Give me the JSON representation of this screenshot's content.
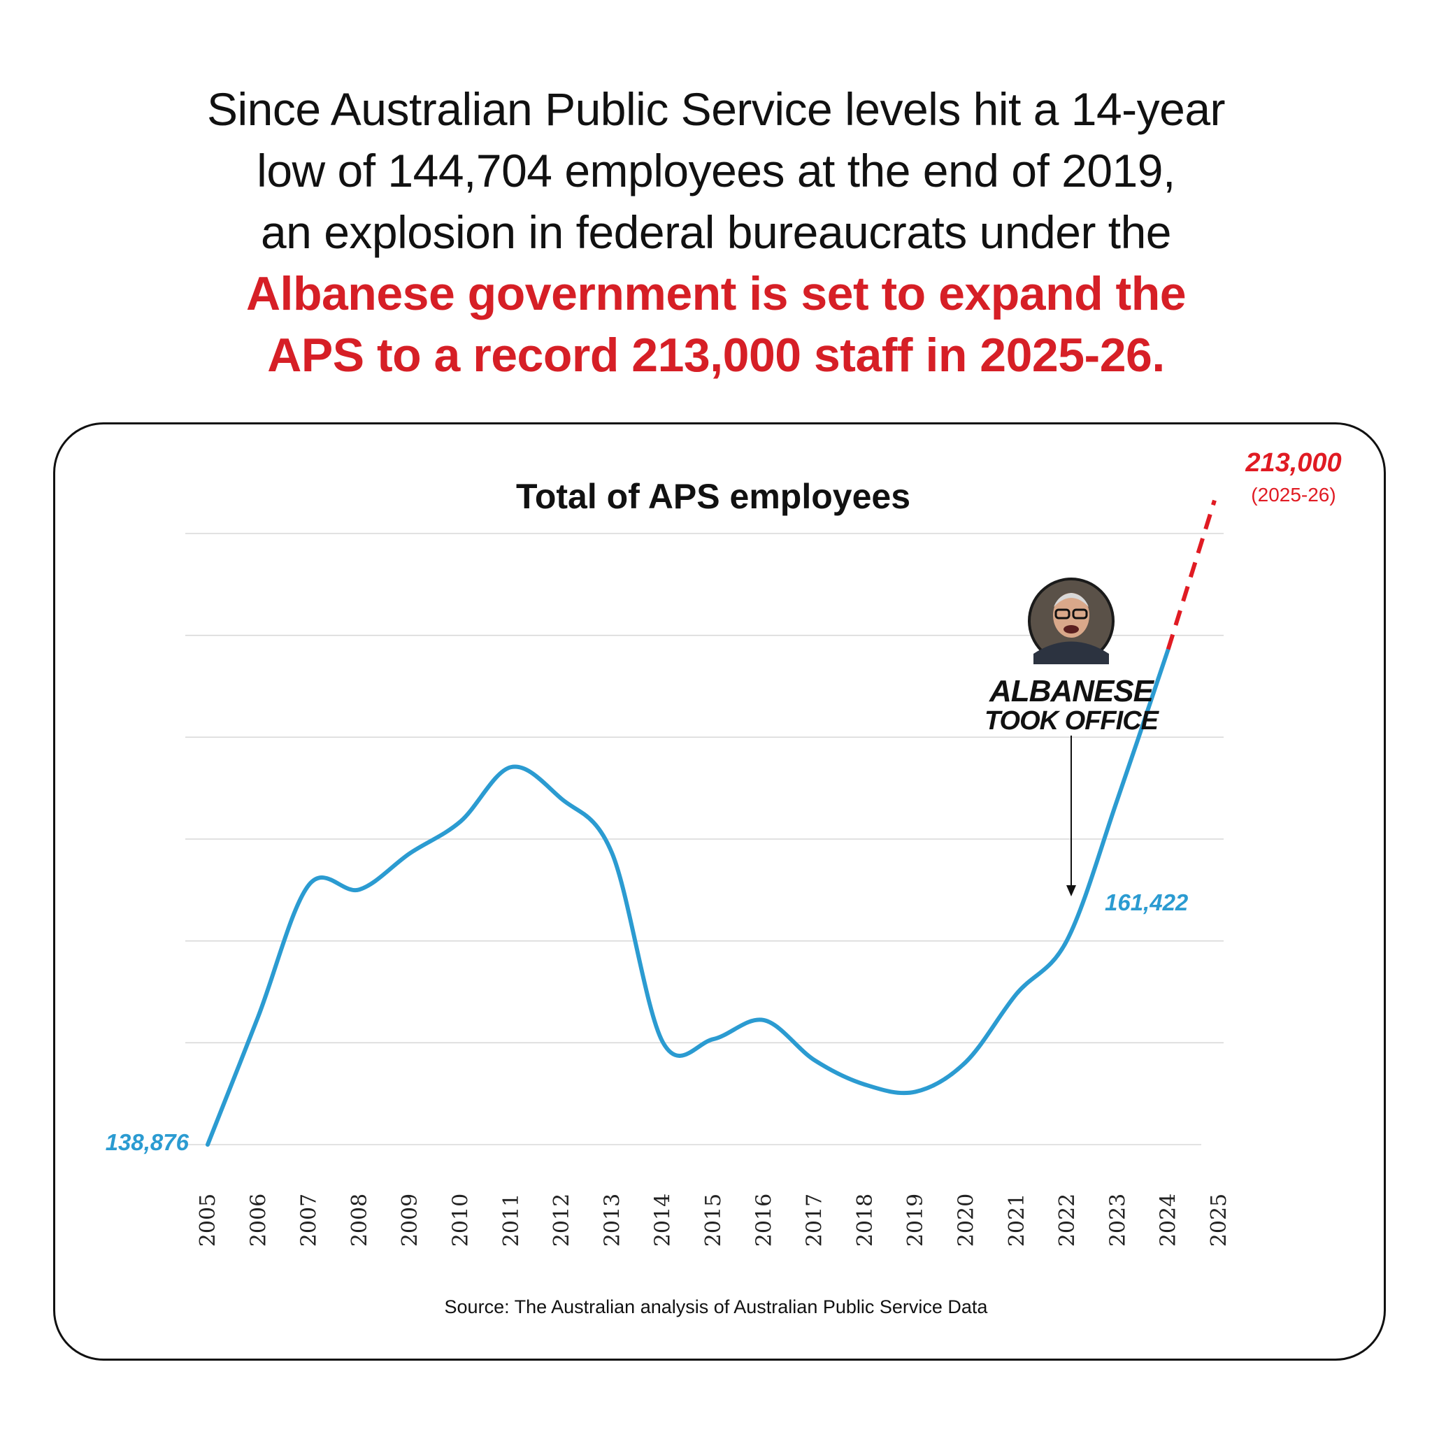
{
  "headline": {
    "lines": [
      "Since Australian Public Service levels hit a 14-year",
      "low of 144,704 employees at the end of 2019,",
      "an explosion in federal bureaucrats under the",
      "Albanese government is set to expand the",
      "APS to a record 213,000 staff in 2025-26."
    ],
    "highlight_from_line": 3
  },
  "colors": {
    "line": "#2b9bd1",
    "projection": "#e01b23",
    "highlight_text": "#d61f26",
    "grid": "#d9d9d9"
  },
  "chart_data": {
    "type": "line",
    "title": "Total of APS employees",
    "x": [
      2005,
      2006,
      2007,
      2008,
      2009,
      2010,
      2011,
      2012,
      2013,
      2014,
      2015,
      2016,
      2017,
      2018,
      2019,
      2020,
      2021,
      2022,
      2023,
      2024
    ],
    "x_tick_labels": [
      "2005",
      "2006",
      "2007",
      "2008",
      "2009",
      "2010",
      "2011",
      "2012",
      "2013",
      "2014",
      "2015",
      "2016",
      "2017",
      "2018",
      "2019",
      "2020",
      "2021",
      "2022",
      "2023",
      "2024",
      "2025"
    ],
    "series": [
      {
        "values": [
          138876,
          153000,
          167500,
          167000,
          171000,
          174500,
          180500,
          177000,
          171000,
          150200,
          150500,
          152600,
          148200,
          145500,
          144704,
          148000,
          155500,
          161422,
          177000,
          193500
        ],
        "style": "solid"
      },
      {
        "x": [
          2024,
          2025
        ],
        "values": [
          193500,
          213000
        ],
        "style": "dashed"
      }
    ],
    "grid": true,
    "grid_lines": 7,
    "legend": "none",
    "annotations": {
      "start_label": "138,876",
      "point_label": "161,422",
      "end_value": "213,000",
      "end_sub": "(2025-26)",
      "event_line1": "ALBANESE",
      "event_line2": "TOOK OFFICE",
      "event_year": 2022
    }
  },
  "source": "Source: The Australian analysis of Australian Public Service Data"
}
